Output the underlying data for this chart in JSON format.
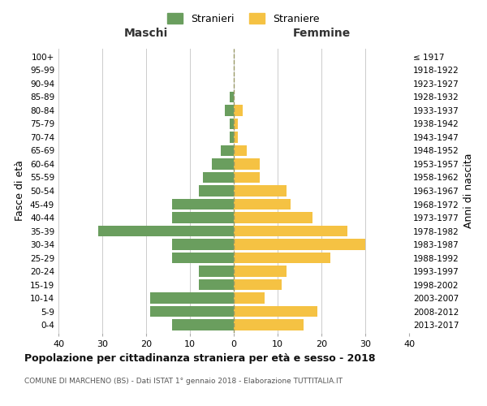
{
  "age_groups": [
    "0-4",
    "5-9",
    "10-14",
    "15-19",
    "20-24",
    "25-29",
    "30-34",
    "35-39",
    "40-44",
    "45-49",
    "50-54",
    "55-59",
    "60-64",
    "65-69",
    "70-74",
    "75-79",
    "80-84",
    "85-89",
    "90-94",
    "95-99",
    "100+"
  ],
  "birth_years": [
    "2013-2017",
    "2008-2012",
    "2003-2007",
    "1998-2002",
    "1993-1997",
    "1988-1992",
    "1983-1987",
    "1978-1982",
    "1973-1977",
    "1968-1972",
    "1963-1967",
    "1958-1962",
    "1953-1957",
    "1948-1952",
    "1943-1947",
    "1938-1942",
    "1933-1937",
    "1928-1932",
    "1923-1927",
    "1918-1922",
    "≤ 1917"
  ],
  "males": [
    14,
    19,
    19,
    8,
    8,
    14,
    14,
    31,
    14,
    14,
    8,
    7,
    5,
    3,
    1,
    1,
    2,
    1,
    0,
    0,
    0
  ],
  "females": [
    16,
    19,
    7,
    11,
    12,
    22,
    30,
    26,
    18,
    13,
    12,
    6,
    6,
    3,
    1,
    1,
    2,
    0,
    0,
    0,
    0
  ],
  "male_color": "#6a9e5e",
  "female_color": "#f5c243",
  "grid_color": "#cccccc",
  "center_line_color": "#999966",
  "title": "Popolazione per cittadinanza straniera per età e sesso - 2018",
  "subtitle": "COMUNE DI MARCHENO (BS) - Dati ISTAT 1° gennaio 2018 - Elaborazione TUTTITALIA.IT",
  "xlabel_left": "Maschi",
  "xlabel_right": "Femmine",
  "ylabel_left": "Fasce di età",
  "ylabel_right": "Anni di nascita",
  "legend_male": "Stranieri",
  "legend_female": "Straniere",
  "xlim": 40,
  "bar_height": 0.8,
  "background_color": "#ffffff"
}
